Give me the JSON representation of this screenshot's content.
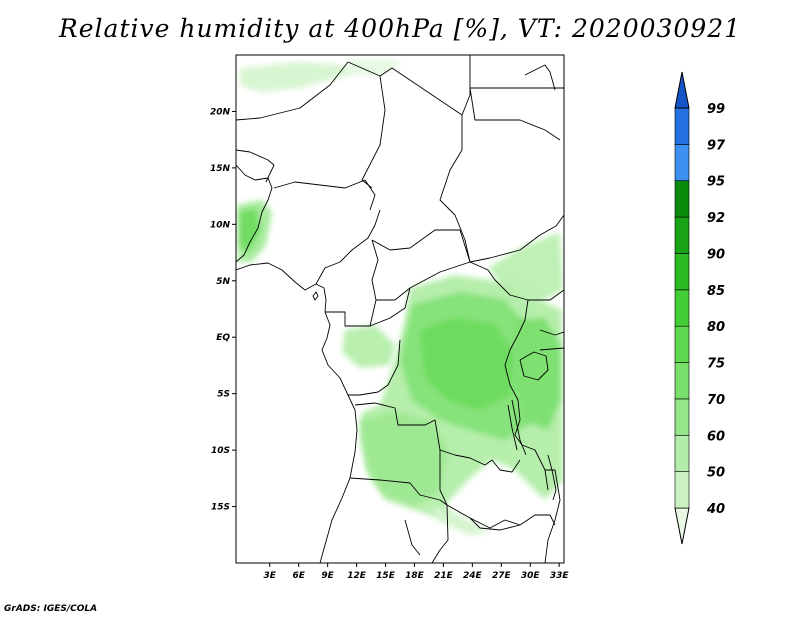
{
  "title": "Relative humidity at 400hPa [%], VT: 2020030921",
  "footer": "GrADS: IGES/COLA",
  "map": {
    "lon_range": [
      -0.5,
      33.5
    ],
    "lat_range": [
      -20,
      25
    ],
    "lat_labels": [
      {
        "lat": 20,
        "text": "20N"
      },
      {
        "lat": 15,
        "text": "15N"
      },
      {
        "lat": 10,
        "text": "10N"
      },
      {
        "lat": 5,
        "text": "5N"
      },
      {
        "lat": 0,
        "text": "EQ"
      },
      {
        "lat": -5,
        "text": "5S"
      },
      {
        "lat": -10,
        "text": "10S"
      },
      {
        "lat": -15,
        "text": "15S"
      }
    ],
    "lon_labels": [
      {
        "lon": 3,
        "text": "3E"
      },
      {
        "lon": 6,
        "text": "6E"
      },
      {
        "lon": 9,
        "text": "9E"
      },
      {
        "lon": 12,
        "text": "12E"
      },
      {
        "lon": 15,
        "text": "15E"
      },
      {
        "lon": 18,
        "text": "18E"
      },
      {
        "lon": 21,
        "text": "21E"
      },
      {
        "lon": 24,
        "text": "24E"
      },
      {
        "lon": 27,
        "text": "27E"
      },
      {
        "lon": 30,
        "text": "30E"
      },
      {
        "lon": 33,
        "text": "33E"
      }
    ]
  },
  "colorbar": {
    "levels": [
      "40",
      "50",
      "60",
      "70",
      "75",
      "80",
      "85",
      "90",
      "92",
      "95",
      "97",
      "99"
    ],
    "colors": [
      "#e9f9e5",
      "#ccf2c4",
      "#b2edaa",
      "#95e58b",
      "#79df6b",
      "#5ed84f",
      "#44cc36",
      "#2cba24",
      "#18a215",
      "#0a8a0a",
      "#3d8ff0",
      "#2372e0",
      "#1555c8"
    ]
  }
}
